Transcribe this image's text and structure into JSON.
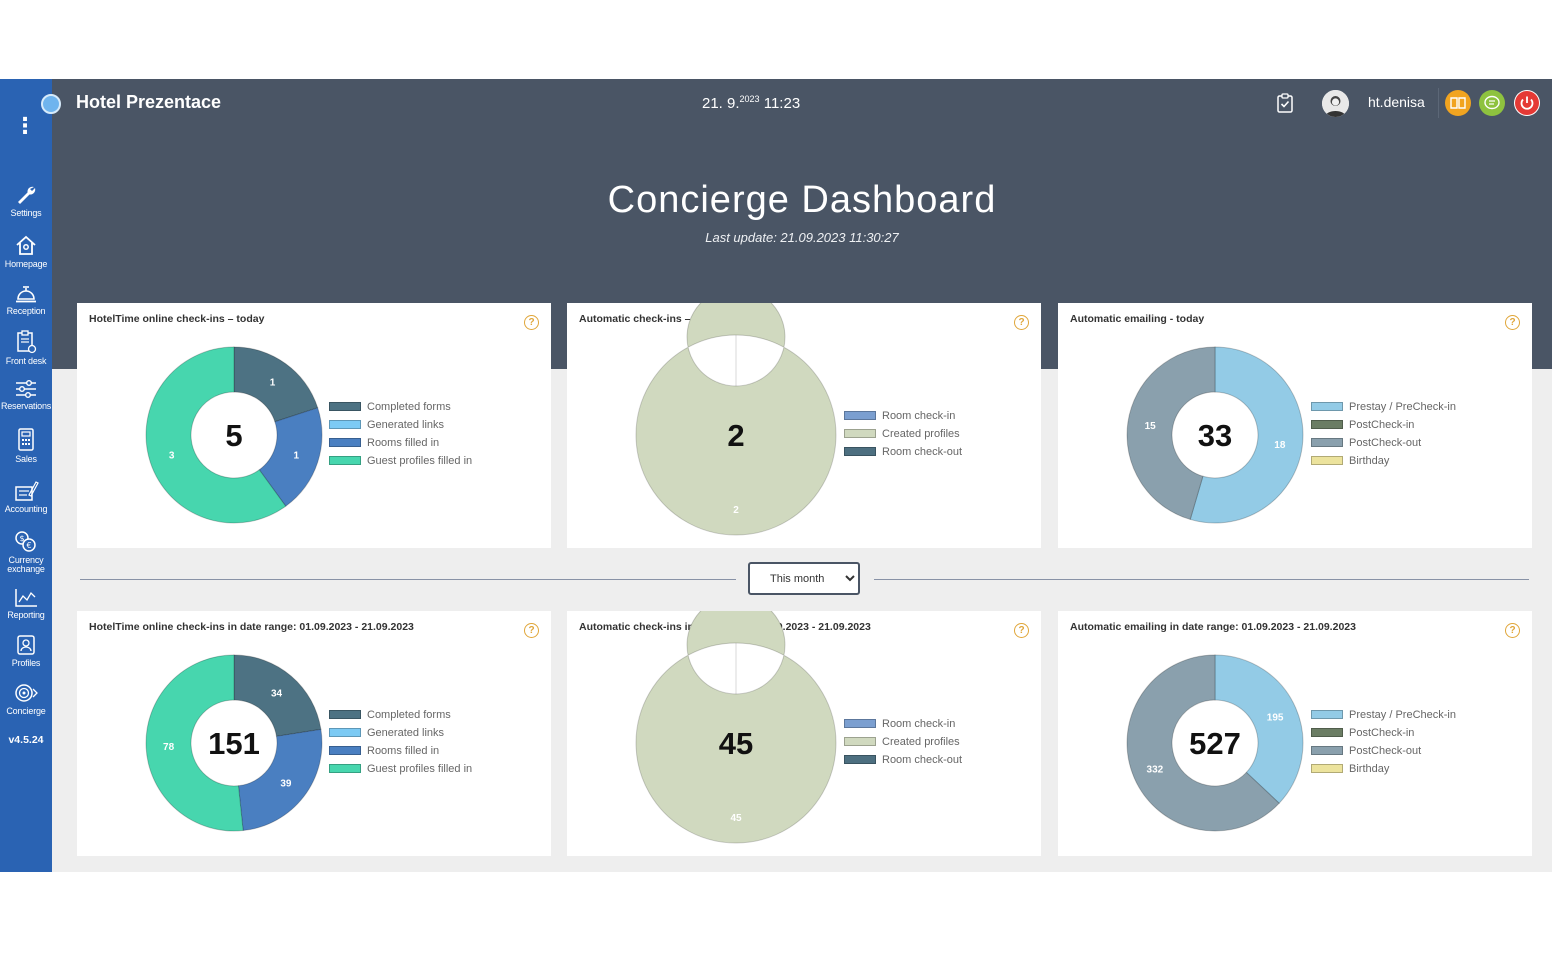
{
  "header": {
    "hotel_name": "Hotel Prezentace",
    "date": "21. 9.",
    "year": "2023",
    "time": "11:23",
    "username": "ht.denisa"
  },
  "page": {
    "title": "Concierge Dashboard",
    "last_update": "Last update: 21.09.2023 11:30:27"
  },
  "sidebar": {
    "items": [
      {
        "label": "Settings",
        "icon": "wrench-icon"
      },
      {
        "label": "Homepage",
        "icon": "home-icon"
      },
      {
        "label": "Reception",
        "icon": "bell-icon"
      },
      {
        "label": "Front desk",
        "icon": "clipboard-icon"
      },
      {
        "label": "Reservations",
        "icon": "sliders-icon"
      },
      {
        "label": "Sales",
        "icon": "calculator-icon"
      },
      {
        "label": "Accounting",
        "icon": "ledger-icon"
      },
      {
        "label": "Currency",
        "label2": "exchange",
        "icon": "currency-icon"
      },
      {
        "label": "Reporting",
        "icon": "chart-icon"
      },
      {
        "label": "Profiles",
        "icon": "profiles-icon"
      },
      {
        "label": "Concierge",
        "icon": "concierge-icon"
      }
    ],
    "version": "v4.5.24"
  },
  "range_select": {
    "selected": "This month",
    "options": [
      "This month"
    ]
  },
  "chart_data": [
    {
      "type": "pie",
      "title": "HotelTime online check-ins – today",
      "total": "5",
      "categories": [
        "Completed forms",
        "Generated links",
        "Rooms filled in",
        "Guest profiles filled in"
      ],
      "values": [
        1,
        0,
        1,
        3
      ],
      "colors": [
        "#4d7283",
        "#7ccaf4",
        "#4a7fc1",
        "#47d6ae"
      ]
    },
    {
      "type": "pie",
      "title": "Automatic check-ins – today",
      "total": "2",
      "categories": [
        "Room check-in",
        "Created profiles",
        "Room check-out"
      ],
      "values": [
        0,
        2,
        0
      ],
      "colors": [
        "#7b9fd0",
        "#d0d9bf",
        "#4d6f80"
      ]
    },
    {
      "type": "pie",
      "title": "Automatic emailing - today",
      "total": "33",
      "categories": [
        "Prestay / PreCheck-in",
        "PostCheck-in",
        "PostCheck-out",
        "Birthday"
      ],
      "values": [
        18,
        0,
        15,
        0
      ],
      "colors": [
        "#93cbe6",
        "#6b7d64",
        "#8aa0ad",
        "#ece39d"
      ]
    },
    {
      "type": "pie",
      "title": "HotelTime online check-ins in date range: 01.09.2023 - 21.09.2023",
      "total": "151",
      "categories": [
        "Completed forms",
        "Generated links",
        "Rooms filled in",
        "Guest profiles filled in"
      ],
      "values": [
        34,
        0,
        39,
        78
      ],
      "colors": [
        "#4d7283",
        "#7ccaf4",
        "#4a7fc1",
        "#47d6ae"
      ]
    },
    {
      "type": "pie",
      "title": "Automatic check-ins in date range: 01.09.2023 - 21.09.2023",
      "total": "45",
      "categories": [
        "Room check-in",
        "Created profiles",
        "Room check-out"
      ],
      "values": [
        0,
        45,
        0
      ],
      "colors": [
        "#7b9fd0",
        "#d0d9bf",
        "#4d6f80"
      ]
    },
    {
      "type": "pie",
      "title": "Automatic emailing in date range: 01.09.2023 - 21.09.2023",
      "total": "527",
      "categories": [
        "Prestay / PreCheck-in",
        "PostCheck-in",
        "PostCheck-out",
        "Birthday"
      ],
      "values": [
        195,
        0,
        332,
        0
      ],
      "colors": [
        "#93cbe6",
        "#6b7d64",
        "#8aa0ad",
        "#ece39d"
      ]
    }
  ]
}
